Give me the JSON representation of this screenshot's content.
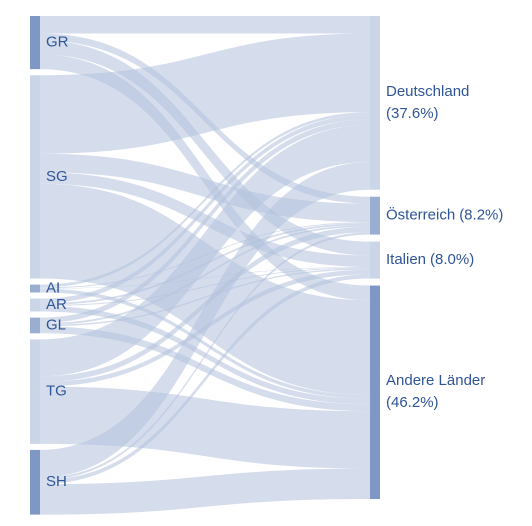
{
  "chart_data": {
    "type": "sankey",
    "sources": [
      {
        "name": "GR",
        "color": "#7f97c4"
      },
      {
        "name": "SG",
        "color": "#cbd5e8"
      },
      {
        "name": "AI",
        "color": "#9aaed2"
      },
      {
        "name": "AR",
        "color": "#cbd5e8"
      },
      {
        "name": "GL",
        "color": "#9aaed2"
      },
      {
        "name": "TG",
        "color": "#cbd5e8"
      },
      {
        "name": "SH",
        "color": "#7f97c4"
      }
    ],
    "targets": [
      {
        "name": "Deutschland",
        "value": 37.6,
        "value_label": "(37.6%)",
        "color": "#cbd5e8"
      },
      {
        "name": "Österreich",
        "value": 8.2,
        "value_label": "(8.2%)",
        "color": "#9aaed2"
      },
      {
        "name": "Italien",
        "value": 8.0,
        "value_label": "(8.0%)",
        "color": "#cbd5e8"
      },
      {
        "name": "Andere Länder",
        "value": 46.2,
        "value_label": "(46.2%)",
        "color": "#7f97c4"
      }
    ],
    "links": [
      {
        "source": 0,
        "target": 0,
        "value": 3.8
      },
      {
        "source": 0,
        "target": 1,
        "value": 1.5
      },
      {
        "source": 0,
        "target": 2,
        "value": 3.0
      },
      {
        "source": 0,
        "target": 3,
        "value": 3.2
      },
      {
        "source": 1,
        "target": 0,
        "value": 17
      },
      {
        "source": 1,
        "target": 1,
        "value": 4
      },
      {
        "source": 1,
        "target": 2,
        "value": 2.5
      },
      {
        "source": 1,
        "target": 3,
        "value": 20.5
      },
      {
        "source": 2,
        "target": 0,
        "value": 0.6
      },
      {
        "source": 2,
        "target": 1,
        "value": 0.2
      },
      {
        "source": 2,
        "target": 2,
        "value": 0.1
      },
      {
        "source": 2,
        "target": 3,
        "value": 0.8
      },
      {
        "source": 3,
        "target": 0,
        "value": 1.0
      },
      {
        "source": 3,
        "target": 1,
        "value": 0.4
      },
      {
        "source": 3,
        "target": 2,
        "value": 0.2
      },
      {
        "source": 3,
        "target": 3,
        "value": 1.2
      },
      {
        "source": 4,
        "target": 0,
        "value": 1.2
      },
      {
        "source": 4,
        "target": 1,
        "value": 0.4
      },
      {
        "source": 4,
        "target": 2,
        "value": 0.3
      },
      {
        "source": 4,
        "target": 3,
        "value": 1.5
      },
      {
        "source": 5,
        "target": 0,
        "value": 8.0
      },
      {
        "source": 5,
        "target": 1,
        "value": 1.2
      },
      {
        "source": 5,
        "target": 2,
        "value": 1.0
      },
      {
        "source": 5,
        "target": 3,
        "value": 12.4
      },
      {
        "source": 6,
        "target": 0,
        "value": 6.0
      },
      {
        "source": 6,
        "target": 1,
        "value": 0.5
      },
      {
        "source": 6,
        "target": 2,
        "value": 0.9
      },
      {
        "source": 6,
        "target": 3,
        "value": 6.6
      }
    ]
  }
}
